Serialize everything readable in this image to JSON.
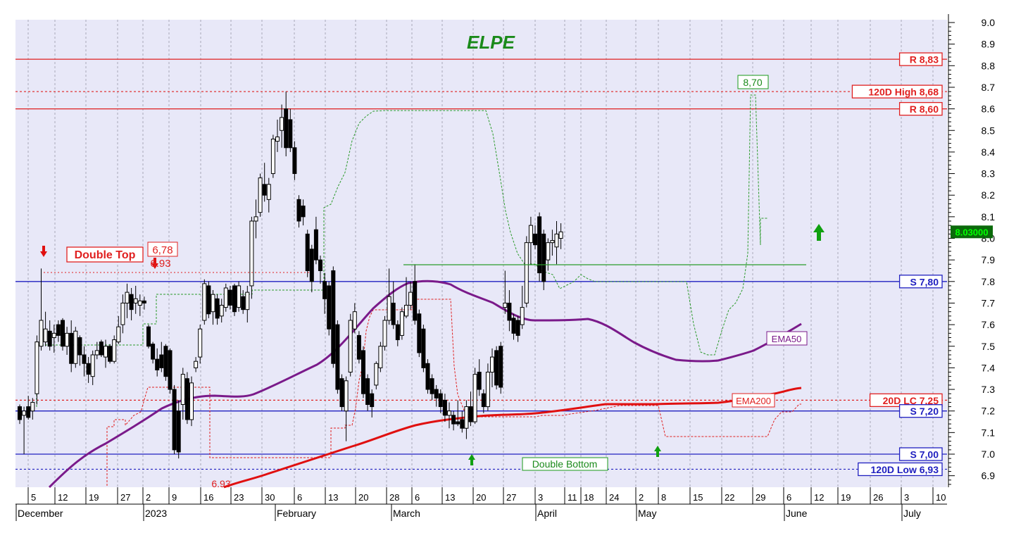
{
  "colors": {
    "background": "#e8e8f8",
    "grid": "#a8a8b8",
    "resistance": "#e02020",
    "support": "#2020c0",
    "ema50": "#7a1a8a",
    "ema200": "#e01010",
    "bull_candle": "#ffffff",
    "bear_candle": "#000000",
    "upper_channel": "#2a9a2a",
    "lower_channel": "#e02020",
    "title": "#1a8a1a",
    "last_price_bg": "#0a6a0a",
    "last_price_fg": "#00ff00",
    "up_arrow": "#10a010",
    "down_arrow": "#e01010"
  },
  "chart_data": {
    "type": "candlestick",
    "title": "ELPE",
    "y_axis": {
      "side": "right",
      "ylim": [
        6.88,
        9.02
      ],
      "ticks": [
        "9.0",
        "8.9",
        "8.8",
        "8.7",
        "8.6",
        "8.5",
        "8.4",
        "8.3",
        "8.2",
        "8.1",
        "8.0",
        "7.9",
        "7.8",
        "7.7",
        "7.6",
        "7.5",
        "7.4",
        "7.3",
        "7.2",
        "7.1",
        "7.0",
        "6.9"
      ]
    },
    "x_axis": {
      "day_ticks": [
        "5",
        "12",
        "19",
        "27",
        "2",
        "9",
        "16",
        "23",
        "30",
        "6",
        "13",
        "20",
        "28",
        "6",
        "13",
        "20",
        "27",
        "3",
        "11",
        "18",
        "24",
        "2",
        "8",
        "15",
        "22",
        "29",
        "6",
        "12",
        "19",
        "26",
        "3",
        "10"
      ],
      "month_labels": [
        "December",
        "2023",
        "February",
        "March",
        "April",
        "May",
        "June",
        "July"
      ]
    },
    "last_price": "8.03000",
    "horizontal_levels": [
      {
        "label": "R 8,83",
        "value": 8.83,
        "style": "solid",
        "color": "#e02020"
      },
      {
        "label": "120D High 8,68",
        "value": 8.68,
        "style": "dashed",
        "color": "#e02020"
      },
      {
        "label": "R 8,60",
        "value": 8.6,
        "style": "solid",
        "color": "#e02020"
      },
      {
        "label": "S 7,80",
        "value": 7.8,
        "style": "solid",
        "color": "#2020c0"
      },
      {
        "label": "20D LC 7.25",
        "value": 7.25,
        "style": "dashed",
        "color": "#e02020"
      },
      {
        "label": "S 7,20",
        "value": 7.2,
        "style": "solid",
        "color": "#2020c0"
      },
      {
        "label": "S 7,00",
        "value": 7.0,
        "style": "solid",
        "color": "#2020c0"
      },
      {
        "label": "120D Low 6,93",
        "value": 6.93,
        "style": "dashed",
        "color": "#2020c0"
      }
    ],
    "annotations": {
      "double_top": "Double Top",
      "double_top_value": "6,78",
      "double_top_low": "6.93",
      "bottom_low": "6.93",
      "double_bottom": "Double Bottom",
      "high_marker": "8,70",
      "ema50_label": "EMA50",
      "ema200_label": "EMA200"
    },
    "candles": [
      {
        "o": 7.22,
        "h": 7.23,
        "l": 7.14,
        "c": 7.16
      },
      {
        "o": 7.18,
        "h": 7.22,
        "l": 7.0,
        "c": 7.2
      },
      {
        "o": 7.22,
        "h": 7.27,
        "l": 7.16,
        "c": 7.17
      },
      {
        "o": 7.2,
        "h": 7.26,
        "l": 7.16,
        "c": 7.24
      },
      {
        "o": 7.28,
        "h": 7.55,
        "l": 7.23,
        "c": 7.52
      },
      {
        "o": 7.5,
        "h": 7.86,
        "l": 7.48,
        "c": 7.62
      },
      {
        "o": 7.52,
        "h": 7.66,
        "l": 7.5,
        "c": 7.58
      },
      {
        "o": 7.57,
        "h": 7.62,
        "l": 7.48,
        "c": 7.5
      },
      {
        "o": 7.54,
        "h": 7.6,
        "l": 7.47,
        "c": 7.56
      },
      {
        "o": 7.6,
        "h": 7.62,
        "l": 7.52,
        "c": 7.55
      },
      {
        "o": 7.62,
        "h": 7.63,
        "l": 7.48,
        "c": 7.5
      },
      {
        "o": 7.5,
        "h": 7.59,
        "l": 7.46,
        "c": 7.56
      },
      {
        "o": 7.56,
        "h": 7.62,
        "l": 7.38,
        "c": 7.42
      },
      {
        "o": 7.42,
        "h": 7.59,
        "l": 7.4,
        "c": 7.57
      },
      {
        "o": 7.54,
        "h": 7.55,
        "l": 7.41,
        "c": 7.46
      },
      {
        "o": 7.46,
        "h": 7.5,
        "l": 7.36,
        "c": 7.42
      },
      {
        "o": 7.42,
        "h": 7.45,
        "l": 7.33,
        "c": 7.37
      },
      {
        "o": 7.36,
        "h": 7.48,
        "l": 7.32,
        "c": 7.46
      },
      {
        "o": 7.46,
        "h": 7.52,
        "l": 7.44,
        "c": 7.48
      },
      {
        "o": 7.52,
        "h": 7.53,
        "l": 7.45,
        "c": 7.46
      },
      {
        "o": 7.45,
        "h": 7.53,
        "l": 7.4,
        "c": 7.5
      },
      {
        "o": 7.5,
        "h": 7.51,
        "l": 7.42,
        "c": 7.43
      },
      {
        "o": 7.43,
        "h": 7.55,
        "l": 7.42,
        "c": 7.53
      },
      {
        "o": 7.52,
        "h": 7.64,
        "l": 7.51,
        "c": 7.59
      },
      {
        "o": 7.6,
        "h": 7.74,
        "l": 7.56,
        "c": 7.7
      },
      {
        "o": 7.7,
        "h": 7.79,
        "l": 7.63,
        "c": 7.75
      },
      {
        "o": 7.74,
        "h": 7.77,
        "l": 7.62,
        "c": 7.67
      },
      {
        "o": 7.7,
        "h": 7.78,
        "l": 7.65,
        "c": 7.72
      },
      {
        "o": 7.69,
        "h": 7.74,
        "l": 7.64,
        "c": 7.71
      },
      {
        "o": 7.71,
        "h": 7.73,
        "l": 7.67,
        "c": 7.7
      },
      {
        "o": 7.59,
        "h": 7.6,
        "l": 7.49,
        "c": 7.5
      },
      {
        "o": 7.51,
        "h": 7.52,
        "l": 7.42,
        "c": 7.44
      },
      {
        "o": 7.44,
        "h": 7.49,
        "l": 7.36,
        "c": 7.39
      },
      {
        "o": 7.46,
        "h": 7.52,
        "l": 7.38,
        "c": 7.4
      },
      {
        "o": 7.5,
        "h": 7.51,
        "l": 7.34,
        "c": 7.36
      },
      {
        "o": 7.48,
        "h": 7.49,
        "l": 7.28,
        "c": 7.3
      },
      {
        "o": 7.3,
        "h": 7.32,
        "l": 7.0,
        "c": 7.02
      },
      {
        "o": 7.2,
        "h": 7.25,
        "l": 6.98,
        "c": 7.01
      },
      {
        "o": 7.23,
        "h": 7.4,
        "l": 7.16,
        "c": 7.37
      },
      {
        "o": 7.35,
        "h": 7.38,
        "l": 7.14,
        "c": 7.16
      },
      {
        "o": 7.16,
        "h": 7.36,
        "l": 7.13,
        "c": 7.33
      },
      {
        "o": 7.4,
        "h": 7.45,
        "l": 7.38,
        "c": 7.43
      },
      {
        "o": 7.45,
        "h": 7.6,
        "l": 7.42,
        "c": 7.58
      },
      {
        "o": 7.62,
        "h": 7.81,
        "l": 7.6,
        "c": 7.79
      },
      {
        "o": 7.78,
        "h": 7.8,
        "l": 7.63,
        "c": 7.65
      },
      {
        "o": 7.66,
        "h": 7.76,
        "l": 7.6,
        "c": 7.74
      },
      {
        "o": 7.72,
        "h": 7.74,
        "l": 7.6,
        "c": 7.63
      },
      {
        "o": 7.64,
        "h": 7.72,
        "l": 7.61,
        "c": 7.69
      },
      {
        "o": 7.68,
        "h": 7.79,
        "l": 7.66,
        "c": 7.77
      },
      {
        "o": 7.76,
        "h": 7.78,
        "l": 7.67,
        "c": 7.69
      },
      {
        "o": 7.78,
        "h": 7.79,
        "l": 7.64,
        "c": 7.66
      },
      {
        "o": 7.68,
        "h": 7.8,
        "l": 7.66,
        "c": 7.78
      },
      {
        "o": 7.73,
        "h": 7.76,
        "l": 7.65,
        "c": 7.67
      },
      {
        "o": 7.67,
        "h": 7.78,
        "l": 7.61,
        "c": 7.75
      },
      {
        "o": 7.78,
        "h": 8.1,
        "l": 7.72,
        "c": 8.08
      },
      {
        "o": 8.08,
        "h": 8.18,
        "l": 8.0,
        "c": 8.1
      },
      {
        "o": 8.12,
        "h": 8.3,
        "l": 8.1,
        "c": 8.28
      },
      {
        "o": 8.25,
        "h": 8.35,
        "l": 8.17,
        "c": 8.2
      },
      {
        "o": 8.18,
        "h": 8.28,
        "l": 8.12,
        "c": 8.25
      },
      {
        "o": 8.3,
        "h": 8.48,
        "l": 8.28,
        "c": 8.46
      },
      {
        "o": 8.45,
        "h": 8.55,
        "l": 8.4,
        "c": 8.47
      },
      {
        "o": 8.5,
        "h": 8.62,
        "l": 8.42,
        "c": 8.56
      },
      {
        "o": 8.6,
        "h": 8.68,
        "l": 8.38,
        "c": 8.42
      },
      {
        "o": 8.55,
        "h": 8.6,
        "l": 8.4,
        "c": 8.42
      },
      {
        "o": 8.42,
        "h": 8.45,
        "l": 8.27,
        "c": 8.3
      },
      {
        "o": 8.18,
        "h": 8.2,
        "l": 8.05,
        "c": 8.08
      },
      {
        "o": 8.15,
        "h": 8.18,
        "l": 8.06,
        "c": 8.1
      },
      {
        "o": 8.02,
        "h": 8.04,
        "l": 7.82,
        "c": 7.85
      },
      {
        "o": 7.95,
        "h": 7.97,
        "l": 7.75,
        "c": 7.8
      },
      {
        "o": 8.04,
        "h": 8.1,
        "l": 7.88,
        "c": 7.9
      },
      {
        "o": 7.9,
        "h": 7.92,
        "l": 7.79,
        "c": 7.85
      },
      {
        "o": 7.8,
        "h": 7.84,
        "l": 7.65,
        "c": 7.72
      },
      {
        "o": 7.78,
        "h": 7.8,
        "l": 7.55,
        "c": 7.58
      },
      {
        "o": 7.85,
        "h": 7.87,
        "l": 7.4,
        "c": 7.42
      },
      {
        "o": 7.6,
        "h": 7.62,
        "l": 7.28,
        "c": 7.3
      },
      {
        "o": 7.35,
        "h": 7.37,
        "l": 7.2,
        "c": 7.22
      },
      {
        "o": 7.2,
        "h": 7.36,
        "l": 7.06,
        "c": 7.34
      },
      {
        "o": 7.38,
        "h": 7.65,
        "l": 7.36,
        "c": 7.62
      },
      {
        "o": 7.58,
        "h": 7.7,
        "l": 7.56,
        "c": 7.66
      },
      {
        "o": 7.55,
        "h": 7.57,
        "l": 7.42,
        "c": 7.44
      },
      {
        "o": 7.48,
        "h": 7.5,
        "l": 7.26,
        "c": 7.28
      },
      {
        "o": 7.35,
        "h": 7.37,
        "l": 7.2,
        "c": 7.23
      },
      {
        "o": 7.28,
        "h": 7.3,
        "l": 7.17,
        "c": 7.22
      },
      {
        "o": 7.32,
        "h": 7.43,
        "l": 7.3,
        "c": 7.42
      },
      {
        "o": 7.4,
        "h": 7.52,
        "l": 7.38,
        "c": 7.5
      },
      {
        "o": 7.5,
        "h": 7.64,
        "l": 7.48,
        "c": 7.62
      },
      {
        "o": 7.62,
        "h": 7.86,
        "l": 7.6,
        "c": 7.73
      },
      {
        "o": 7.7,
        "h": 7.8,
        "l": 7.58,
        "c": 7.6
      },
      {
        "o": 7.6,
        "h": 7.62,
        "l": 7.5,
        "c": 7.53
      },
      {
        "o": 7.55,
        "h": 7.68,
        "l": 7.53,
        "c": 7.66
      },
      {
        "o": 7.64,
        "h": 7.82,
        "l": 7.63,
        "c": 7.69
      },
      {
        "o": 7.69,
        "h": 7.8,
        "l": 7.67,
        "c": 7.75
      },
      {
        "o": 7.8,
        "h": 7.88,
        "l": 7.6,
        "c": 7.62
      },
      {
        "o": 7.65,
        "h": 7.67,
        "l": 7.45,
        "c": 7.47
      },
      {
        "o": 7.58,
        "h": 7.6,
        "l": 7.38,
        "c": 7.4
      },
      {
        "o": 7.42,
        "h": 7.44,
        "l": 7.28,
        "c": 7.3
      },
      {
        "o": 7.35,
        "h": 7.37,
        "l": 7.25,
        "c": 7.28
      },
      {
        "o": 7.3,
        "h": 7.32,
        "l": 7.22,
        "c": 7.26
      },
      {
        "o": 7.28,
        "h": 7.3,
        "l": 7.19,
        "c": 7.22
      },
      {
        "o": 7.25,
        "h": 7.28,
        "l": 7.15,
        "c": 7.18
      },
      {
        "o": 7.18,
        "h": 7.24,
        "l": 7.12,
        "c": 7.2
      },
      {
        "o": 7.18,
        "h": 7.2,
        "l": 7.11,
        "c": 7.14
      },
      {
        "o": 7.15,
        "h": 7.25,
        "l": 7.13,
        "c": 7.14
      },
      {
        "o": 7.16,
        "h": 7.2,
        "l": 7.1,
        "c": 7.12
      },
      {
        "o": 7.12,
        "h": 7.25,
        "l": 7.07,
        "c": 7.22
      },
      {
        "o": 7.22,
        "h": 7.29,
        "l": 7.13,
        "c": 7.15
      },
      {
        "o": 7.15,
        "h": 7.4,
        "l": 7.14,
        "c": 7.37
      },
      {
        "o": 7.38,
        "h": 7.44,
        "l": 7.27,
        "c": 7.3
      },
      {
        "o": 7.28,
        "h": 7.3,
        "l": 7.19,
        "c": 7.22
      },
      {
        "o": 7.22,
        "h": 7.42,
        "l": 7.2,
        "c": 7.38
      },
      {
        "o": 7.38,
        "h": 7.49,
        "l": 7.31,
        "c": 7.45
      },
      {
        "o": 7.48,
        "h": 7.5,
        "l": 7.3,
        "c": 7.32
      },
      {
        "o": 7.5,
        "h": 7.52,
        "l": 7.28,
        "c": 7.31
      },
      {
        "o": 7.68,
        "h": 7.85,
        "l": 7.65,
        "c": 7.7
      },
      {
        "o": 7.7,
        "h": 7.76,
        "l": 7.57,
        "c": 7.62
      },
      {
        "o": 7.63,
        "h": 7.65,
        "l": 7.53,
        "c": 7.56
      },
      {
        "o": 7.62,
        "h": 7.64,
        "l": 7.52,
        "c": 7.55
      },
      {
        "o": 7.6,
        "h": 7.78,
        "l": 7.58,
        "c": 7.68
      },
      {
        "o": 7.7,
        "h": 8.01,
        "l": 7.68,
        "c": 7.98
      },
      {
        "o": 7.98,
        "h": 8.1,
        "l": 7.88,
        "c": 8.06
      },
      {
        "o": 8.02,
        "h": 8.06,
        "l": 7.95,
        "c": 7.97
      },
      {
        "o": 8.1,
        "h": 8.12,
        "l": 7.8,
        "c": 7.84
      },
      {
        "o": 8.02,
        "h": 8.04,
        "l": 7.76,
        "c": 7.8
      },
      {
        "o": 7.9,
        "h": 8.0,
        "l": 7.85,
        "c": 7.98
      },
      {
        "o": 7.98,
        "h": 8.04,
        "l": 7.92,
        "c": 7.99
      },
      {
        "o": 7.96,
        "h": 8.08,
        "l": 7.88,
        "c": 8.02
      },
      {
        "o": 8.0,
        "h": 8.07,
        "l": 7.95,
        "c": 8.03
      }
    ]
  }
}
